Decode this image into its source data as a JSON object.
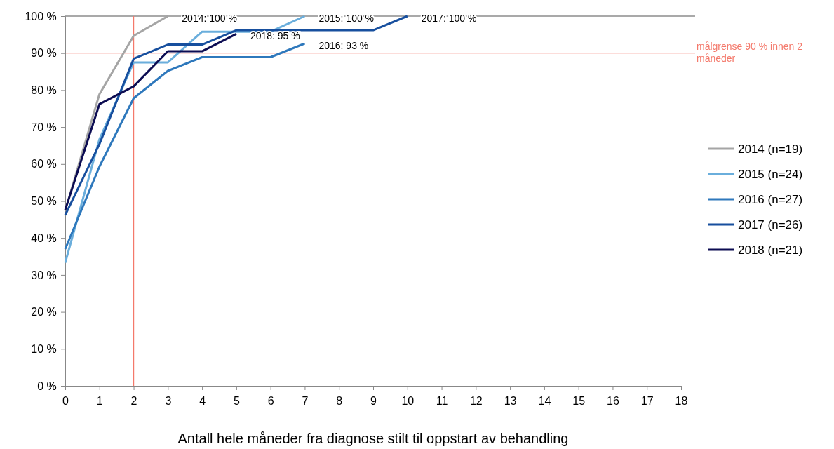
{
  "chart_data": {
    "type": "line",
    "xlabel": "Antall hele måneder fra diagnose stilt til oppstart av behandling",
    "xlim": [
      0,
      18
    ],
    "xticks": [
      0,
      1,
      2,
      3,
      4,
      5,
      6,
      7,
      8,
      9,
      10,
      11,
      12,
      13,
      14,
      15,
      16,
      17,
      18
    ],
    "ylim": [
      0,
      100
    ],
    "yticks": [
      {
        "value": 0,
        "label": "0 %"
      },
      {
        "value": 10,
        "label": "10 %"
      },
      {
        "value": 20,
        "label": "20 %"
      },
      {
        "value": 30,
        "label": "30 %"
      },
      {
        "value": 40,
        "label": "40 %"
      },
      {
        "value": 50,
        "label": "50 %"
      },
      {
        "value": 60,
        "label": "60 %"
      },
      {
        "value": 70,
        "label": "70 %"
      },
      {
        "value": 80,
        "label": "80 %"
      },
      {
        "value": 90,
        "label": "90 %"
      },
      {
        "value": 100,
        "label": "100 %"
      }
    ],
    "series": [
      {
        "name": "2014 (n=19)",
        "color": "#a5a5a5",
        "x": [
          0,
          1,
          2,
          3
        ],
        "values": [
          47.4,
          78.9,
          94.7,
          100
        ]
      },
      {
        "name": "2015 (n=24)",
        "color": "#6aaedc",
        "x": [
          0,
          1,
          2,
          3,
          4,
          5,
          6,
          7
        ],
        "values": [
          33.3,
          66.7,
          87.5,
          87.5,
          95.8,
          95.8,
          95.8,
          100
        ]
      },
      {
        "name": "2016 (n=27)",
        "color": "#2e78bc",
        "x": [
          0,
          1,
          2,
          3,
          4,
          5,
          6,
          7
        ],
        "values": [
          37.0,
          59.3,
          77.8,
          85.2,
          88.9,
          88.9,
          88.9,
          92.6
        ]
      },
      {
        "name": "2017 (n=26)",
        "color": "#174f9e",
        "x": [
          0,
          1,
          2,
          3,
          4,
          5,
          6,
          7,
          8,
          9,
          10
        ],
        "values": [
          46.2,
          65.4,
          88.5,
          92.3,
          92.3,
          96.2,
          96.2,
          96.2,
          96.2,
          96.2,
          100
        ]
      },
      {
        "name": "2018 (n=21)",
        "color": "#0c0c52",
        "x": [
          0,
          1,
          2,
          3,
          4,
          5
        ],
        "values": [
          47.6,
          76.2,
          81.0,
          90.5,
          90.5,
          95.2
        ]
      }
    ],
    "ref_lines": [
      {
        "axis": "y",
        "value": 100,
        "color": "#8c8c8c"
      },
      {
        "axis": "y",
        "value": 90,
        "label": "målgrense 90 % innen 2 måneder",
        "color": "#f4796b"
      },
      {
        "axis": "x",
        "value": 2,
        "color": "#f4796b"
      }
    ],
    "annotations": [
      {
        "text": "2014: 100 %",
        "x": 3,
        "y": 100
      },
      {
        "text": "2015: 100 %",
        "x": 7,
        "y": 100
      },
      {
        "text": "2017: 100 %",
        "x": 10,
        "y": 100
      },
      {
        "text": "2018: 95 %",
        "x": 5,
        "y": 95.2
      },
      {
        "text": "2016: 93 %",
        "x": 7,
        "y": 92.6
      }
    ],
    "legend": "right",
    "line_style": "solid",
    "marker": "none"
  }
}
